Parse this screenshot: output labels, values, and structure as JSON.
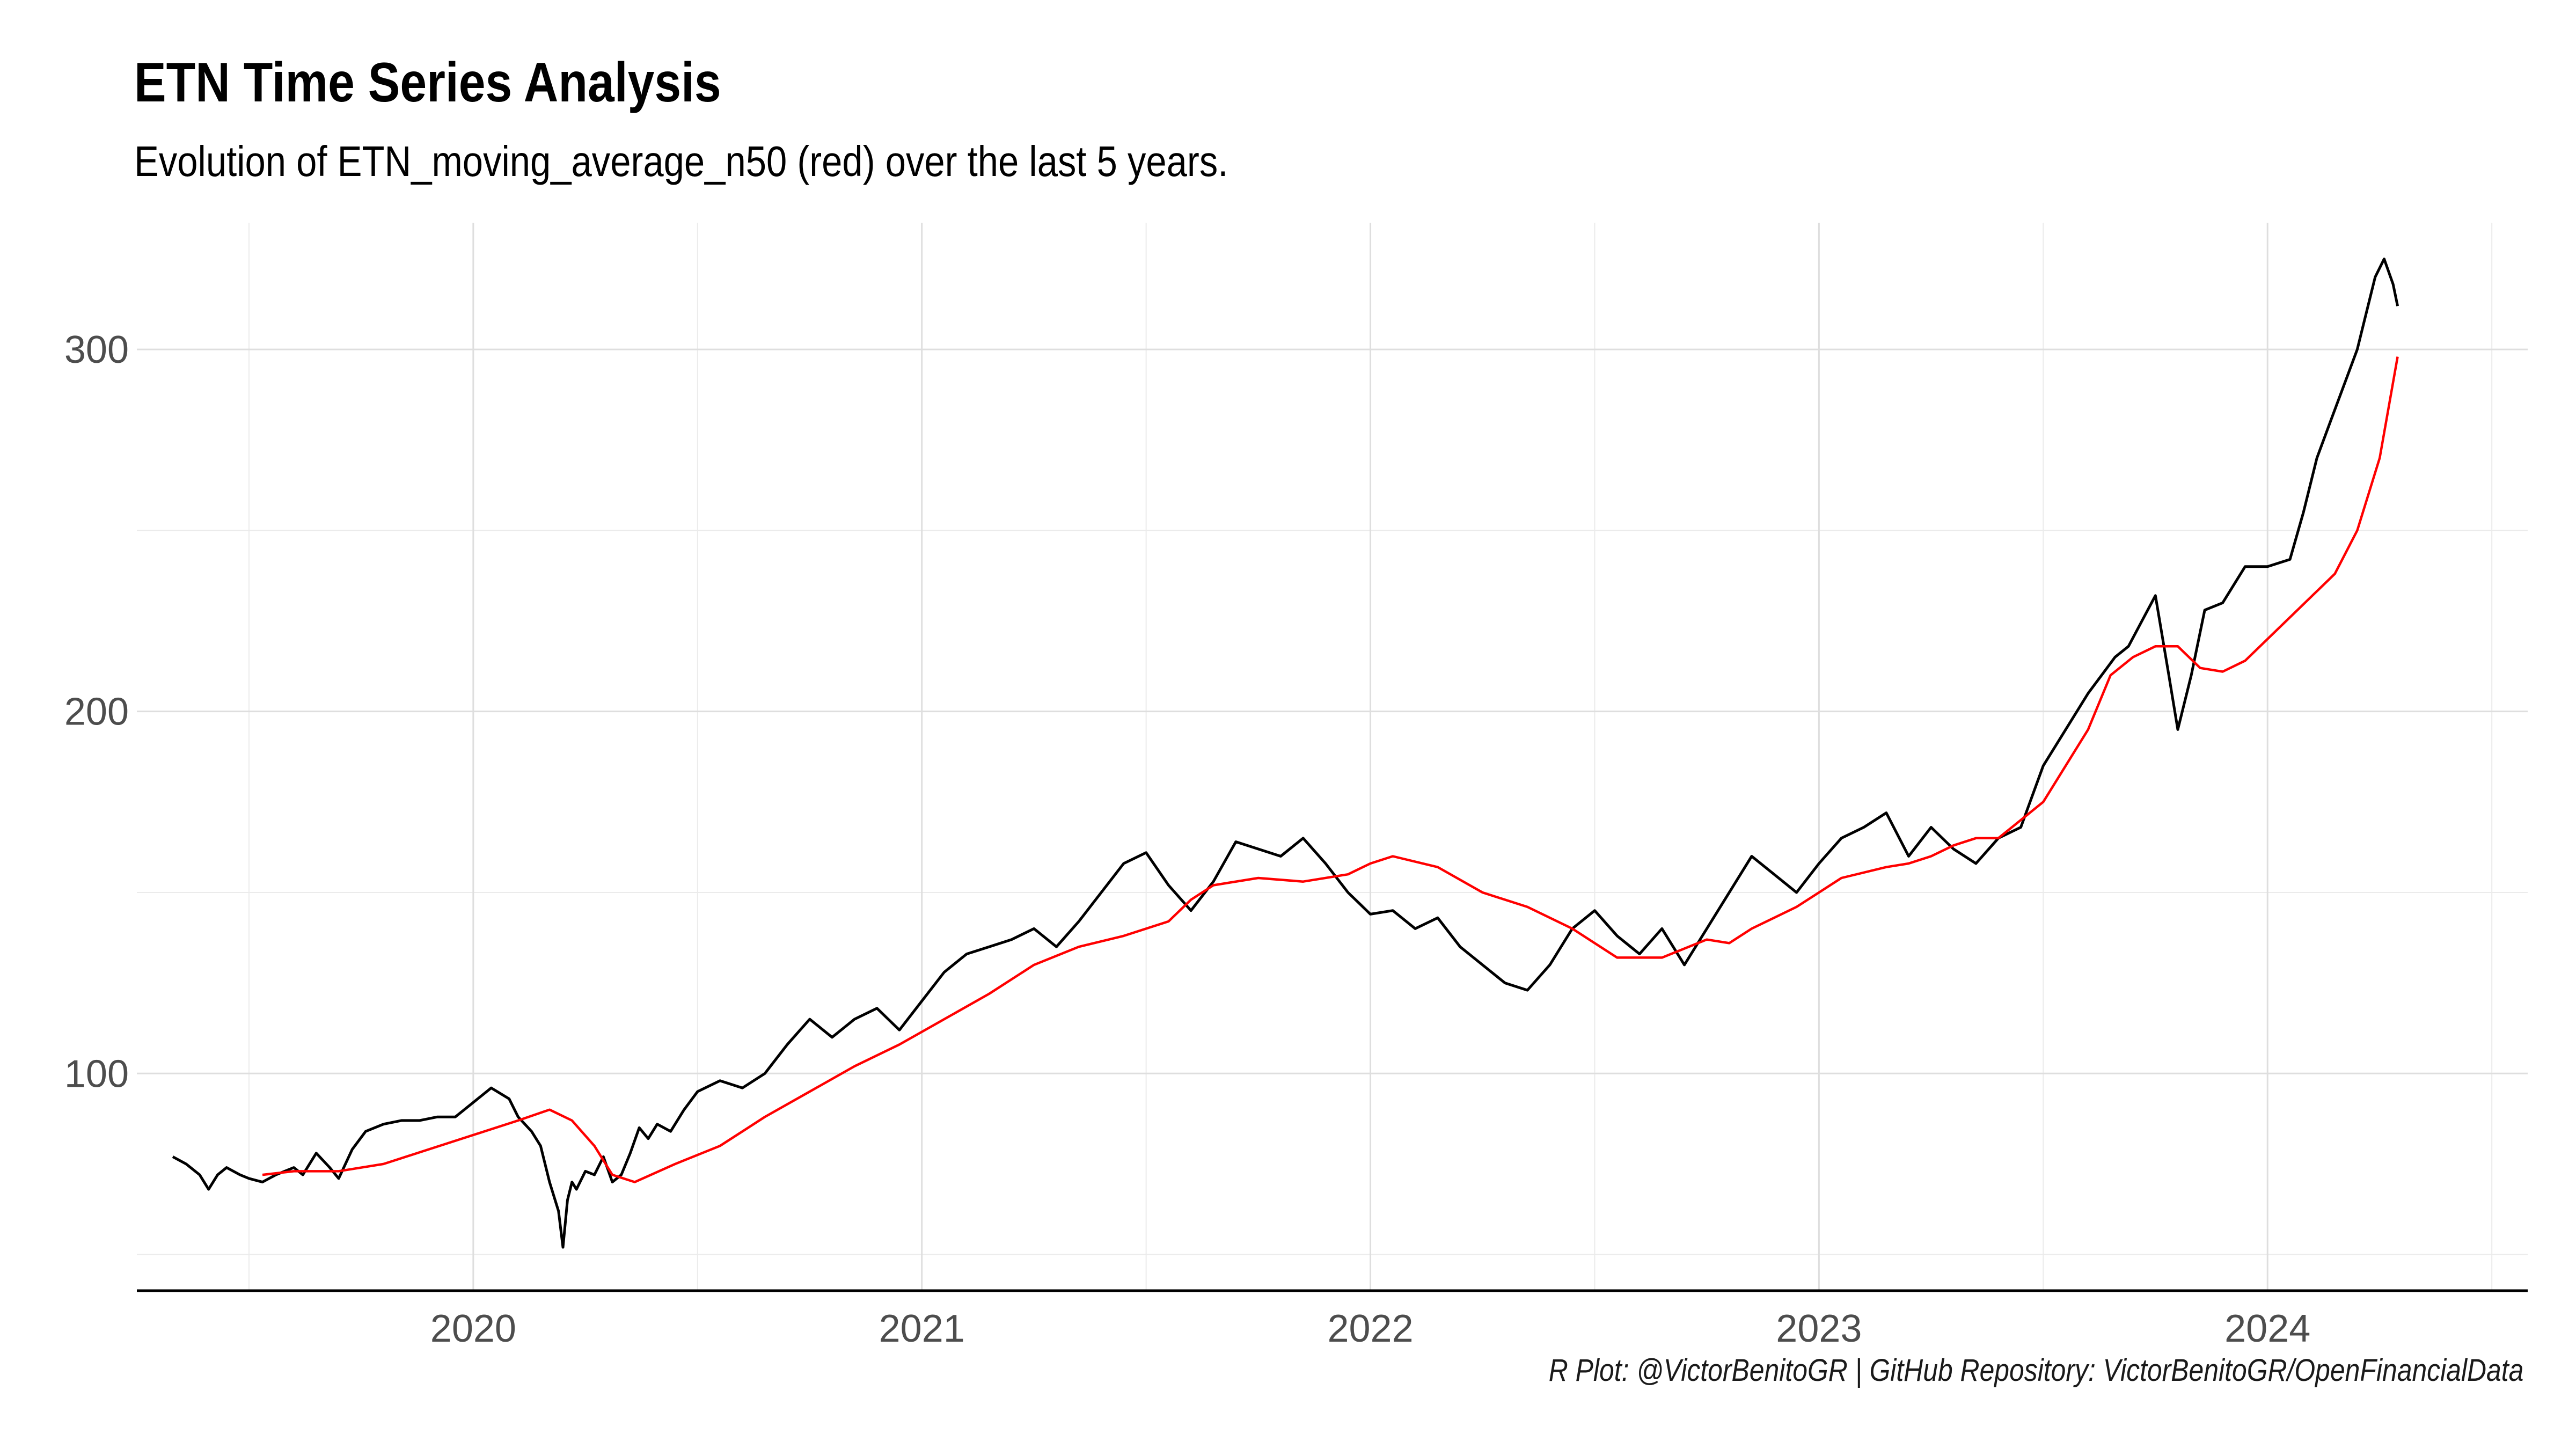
{
  "title": "ETN Time Series Analysis",
  "subtitle": "Evolution of ETN_moving_average_n50  (red) over the last 5 years.",
  "caption": "R Plot: @VictorBenitoGR | GitHub Repository:  VictorBenitoGR/OpenFinancialData",
  "chart_data": {
    "type": "line",
    "title": "ETN Time Series Analysis",
    "subtitle": "Evolution of ETN_moving_average_n50  (red) over the last 5 years.",
    "xlabel": "",
    "ylabel": "",
    "xlim": [
      2019.25,
      2024.58
    ],
    "ylim": [
      40,
      335
    ],
    "x_ticks": [
      2020,
      2021,
      2022,
      2023,
      2024
    ],
    "x_tick_labels": [
      "2020",
      "2021",
      "2022",
      "2023",
      "2024"
    ],
    "y_ticks": [
      100,
      200,
      300
    ],
    "y_tick_labels": [
      "100",
      "200",
      "300"
    ],
    "grid": true,
    "colors": {
      "price": "#000000",
      "moving_average": "#ff0000"
    },
    "series": [
      {
        "key": "price",
        "x": [
          2019.33,
          2019.36,
          2019.39,
          2019.41,
          2019.43,
          2019.45,
          2019.48,
          2019.5,
          2019.53,
          2019.56,
          2019.6,
          2019.62,
          2019.65,
          2019.68,
          2019.7,
          2019.73,
          2019.76,
          2019.8,
          2019.84,
          2019.88,
          2019.92,
          2019.96,
          2020.0,
          2020.04,
          2020.08,
          2020.1,
          2020.13,
          2020.15,
          2020.17,
          2020.19,
          2020.2,
          2020.21,
          2020.22,
          2020.23,
          2020.25,
          2020.27,
          2020.29,
          2020.31,
          2020.33,
          2020.35,
          2020.37,
          2020.39,
          2020.41,
          2020.44,
          2020.47,
          2020.5,
          2020.55,
          2020.6,
          2020.65,
          2020.7,
          2020.75,
          2020.8,
          2020.85,
          2020.9,
          2020.95,
          2021.0,
          2021.05,
          2021.1,
          2021.15,
          2021.2,
          2021.25,
          2021.3,
          2021.35,
          2021.4,
          2021.45,
          2021.5,
          2021.55,
          2021.6,
          2021.65,
          2021.7,
          2021.75,
          2021.8,
          2021.85,
          2021.9,
          2021.95,
          2022.0,
          2022.05,
          2022.1,
          2022.15,
          2022.2,
          2022.25,
          2022.3,
          2022.35,
          2022.4,
          2022.45,
          2022.5,
          2022.55,
          2022.6,
          2022.65,
          2022.7,
          2022.75,
          2022.8,
          2022.85,
          2022.9,
          2022.95,
          2023.0,
          2023.05,
          2023.1,
          2023.15,
          2023.2,
          2023.25,
          2023.3,
          2023.35,
          2023.4,
          2023.45,
          2023.5,
          2023.55,
          2023.6,
          2023.63,
          2023.66,
          2023.69,
          2023.72,
          2023.75,
          2023.78,
          2023.8,
          2023.83,
          2023.86,
          2023.9,
          2023.95,
          2024.0,
          2024.05,
          2024.08,
          2024.11,
          2024.14,
          2024.17,
          2024.2,
          2024.22,
          2024.24,
          2024.26,
          2024.28,
          2024.29
        ],
        "y": [
          77,
          75,
          72,
          68,
          72,
          74,
          72,
          71,
          70,
          72,
          74,
          72,
          78,
          74,
          71,
          79,
          84,
          86,
          87,
          87,
          88,
          88,
          92,
          96,
          93,
          88,
          84,
          80,
          70,
          62,
          52,
          65,
          70,
          68,
          73,
          72,
          77,
          70,
          72,
          78,
          85,
          82,
          86,
          84,
          90,
          95,
          98,
          96,
          100,
          108,
          115,
          110,
          115,
          118,
          112,
          120,
          128,
          133,
          135,
          137,
          140,
          135,
          142,
          150,
          158,
          161,
          152,
          145,
          153,
          164,
          162,
          160,
          165,
          158,
          150,
          144,
          145,
          140,
          143,
          135,
          130,
          125,
          123,
          130,
          140,
          145,
          138,
          133,
          140,
          130,
          140,
          150,
          160,
          155,
          150,
          158,
          165,
          168,
          172,
          160,
          168,
          162,
          158,
          165,
          168,
          185,
          195,
          205,
          210,
          215,
          218,
          225,
          232,
          210,
          195,
          210,
          228,
          230,
          240,
          240,
          242,
          255,
          270,
          280,
          290,
          300,
          310,
          320,
          325,
          318,
          312
        ]
      },
      {
        "key": "moving_average",
        "x": [
          2019.53,
          2019.6,
          2019.7,
          2019.8,
          2019.9,
          2020.0,
          2020.1,
          2020.17,
          2020.22,
          2020.27,
          2020.31,
          2020.36,
          2020.45,
          2020.55,
          2020.65,
          2020.75,
          2020.85,
          2020.95,
          2021.05,
          2021.15,
          2021.25,
          2021.35,
          2021.45,
          2021.55,
          2021.6,
          2021.65,
          2021.75,
          2021.85,
          2021.95,
          2022.0,
          2022.05,
          2022.15,
          2022.25,
          2022.35,
          2022.45,
          2022.55,
          2022.65,
          2022.75,
          2022.8,
          2022.85,
          2022.95,
          2023.0,
          2023.05,
          2023.15,
          2023.2,
          2023.25,
          2023.3,
          2023.35,
          2023.4,
          2023.5,
          2023.6,
          2023.65,
          2023.7,
          2023.75,
          2023.8,
          2023.85,
          2023.9,
          2023.95,
          2024.0,
          2024.05,
          2024.1,
          2024.15,
          2024.2,
          2024.25,
          2024.29
        ],
        "y": [
          72,
          73,
          73,
          75,
          79,
          83,
          87,
          90,
          87,
          80,
          72,
          70,
          75,
          80,
          88,
          95,
          102,
          108,
          115,
          122,
          130,
          135,
          138,
          142,
          148,
          152,
          154,
          153,
          155,
          158,
          160,
          157,
          150,
          146,
          140,
          132,
          132,
          137,
          136,
          140,
          146,
          150,
          154,
          157,
          158,
          160,
          163,
          165,
          165,
          175,
          195,
          210,
          215,
          218,
          218,
          212,
          211,
          214,
          220,
          226,
          232,
          238,
          250,
          270,
          298
        ]
      }
    ]
  }
}
